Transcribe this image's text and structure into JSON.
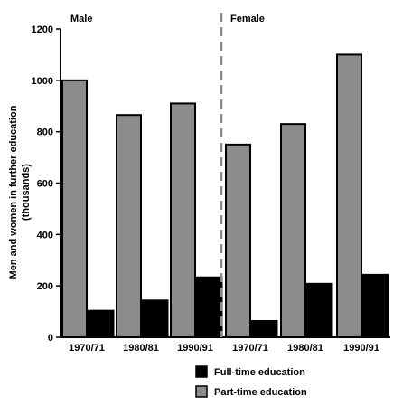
{
  "chart_data": {
    "type": "bar",
    "panels": [
      "Male",
      "Female"
    ],
    "categories": [
      "1970/71",
      "1980/81",
      "1990/91"
    ],
    "ylabel": "Men and women in further education (thousands)",
    "ylabel_lines": [
      "Men and women in further education",
      "(thousands)"
    ],
    "ylim": [
      0,
      1200
    ],
    "yticks": [
      0,
      200,
      400,
      600,
      800,
      1000,
      1200
    ],
    "series": [
      {
        "name": "Part-time education",
        "color": "#8c8c8c",
        "values": {
          "Male": [
            1000,
            865,
            910
          ],
          "Female": [
            750,
            830,
            1100
          ]
        }
      },
      {
        "name": "Full-time education",
        "color": "#000000",
        "values": {
          "Male": [
            105,
            145,
            235
          ],
          "Female": [
            65,
            210,
            245
          ]
        }
      }
    ],
    "legend": {
      "placement": "bottom-right",
      "order": [
        "Full-time education",
        "Part-time education"
      ]
    },
    "grid": false
  }
}
